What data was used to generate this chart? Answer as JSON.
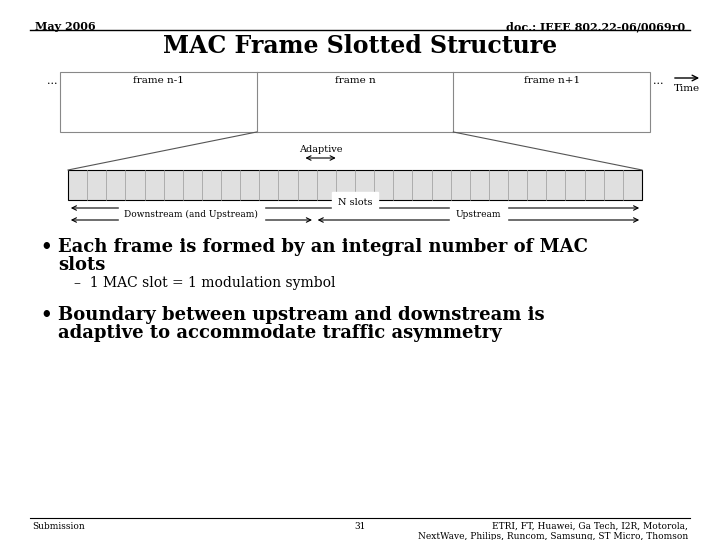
{
  "title": "MAC Frame Slotted Structure",
  "header_left": "May 2006",
  "header_right": "doc.: IEEE 802.22-06/0069r0",
  "footer_left": "Submission",
  "footer_center": "31",
  "footer_right": "ETRI, FT, Huawei, Ga Tech, I2R, Motorola,\nNextWave, Philips, Runcom, Samsung, ST Micro, Thomson",
  "bullet1_line1": "Each frame is formed by an integral number of MAC",
  "bullet1_line2": "slots",
  "bullet1_sub": "–  1 MAC slot = 1 modulation symbol",
  "bullet2_line1": "Boundary between upstream and downstream is",
  "bullet2_line2": "adaptive to accommodate traffic asymmetry",
  "bg_color": "#ffffff",
  "diagram_border_color": "#888888",
  "slot_fill": "#e0e0e0",
  "slot_div_color": "#999999",
  "trap_line_color": "#555555",
  "arrow_color": "#000000",
  "text_color": "#000000"
}
